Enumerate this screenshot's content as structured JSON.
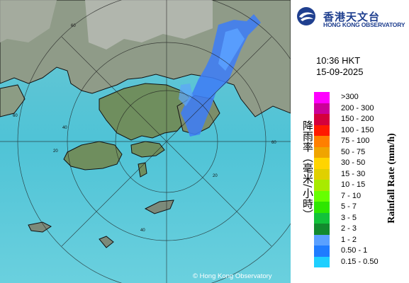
{
  "logo": {
    "chinese_name": "香港天文台",
    "english_name": "HONG KONG OBSERVATORY"
  },
  "timestamp": {
    "time": "10:36 HKT",
    "date": "15-09-2025"
  },
  "legend": {
    "unit_chinese": "降雨率（毫米/小時）",
    "unit_english": "Rainfall Rate (mm/h)",
    "items": [
      {
        "label": ">300",
        "color": "#ff00ff"
      },
      {
        "label": "200 - 300",
        "color": "#cc0099"
      },
      {
        "label": "150 - 200",
        "color": "#d4003c"
      },
      {
        "label": "100 - 150",
        "color": "#ff1a00"
      },
      {
        "label": "75 - 100",
        "color": "#ff7f00"
      },
      {
        "label": "50 - 75",
        "color": "#f0a400"
      },
      {
        "label": "30 - 50",
        "color": "#ffd400"
      },
      {
        "label": "15 - 30",
        "color": "#e0d000"
      },
      {
        "label": "10 - 15",
        "color": "#a8ea00"
      },
      {
        "label": "7 - 10",
        "color": "#66ff00"
      },
      {
        "label": "5 - 7",
        "color": "#2ee600"
      },
      {
        "label": "3 - 5",
        "color": "#12c23a"
      },
      {
        "label": "2 - 3",
        "color": "#128a2e"
      },
      {
        "label": "1 - 2",
        "color": "#5aa0ff"
      },
      {
        "label": "0.50 - 1",
        "color": "#1f7cff"
      },
      {
        "label": "0.15 - 0.50",
        "color": "#1ecfff"
      }
    ]
  },
  "map": {
    "range_ring_labels": [
      "60",
      "60",
      "60",
      "40",
      "40",
      "20",
      "20"
    ],
    "copyright": "© Hong Kong Observatory",
    "sea_color": "#5bc8d8",
    "land_color": "#8c9c84",
    "rain_color": "#3f7df5"
  }
}
